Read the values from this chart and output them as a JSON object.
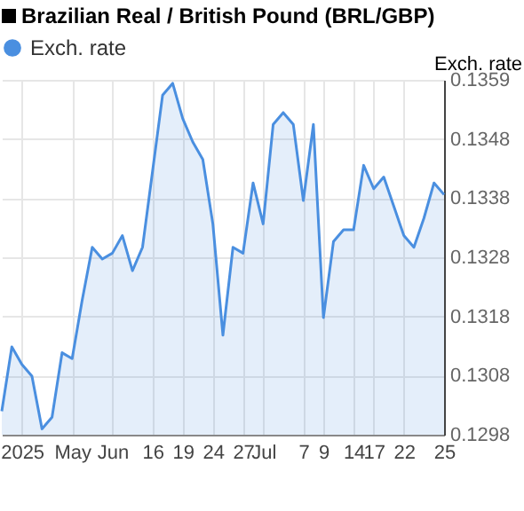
{
  "chart_data": {
    "type": "area",
    "title": "Brazilian Real / British Pound (BRL/GBP)",
    "ylabel": "Exch. rate",
    "categories": [
      null,
      null,
      "2025",
      null,
      null,
      null,
      null,
      "May",
      null,
      null,
      null,
      "Jun",
      null,
      null,
      null,
      "16",
      null,
      null,
      "19",
      null,
      null,
      "24",
      null,
      null,
      "27",
      null,
      "Jul",
      null,
      null,
      null,
      "7",
      null,
      "9",
      null,
      null,
      "14",
      null,
      "17",
      null,
      null,
      "22",
      null,
      null,
      null,
      "25"
    ],
    "series": [
      {
        "name": "Exch. rate",
        "color": "#4a8fe0",
        "values": [
          0.1302,
          0.1313,
          0.131,
          0.1308,
          0.1299,
          0.1301,
          0.1312,
          0.1311,
          0.1321,
          0.133,
          0.1328,
          0.1329,
          0.1332,
          0.1326,
          0.133,
          0.1343,
          0.1356,
          0.1358,
          0.1352,
          0.1348,
          0.1345,
          0.1334,
          0.1315,
          0.133,
          0.1329,
          0.1341,
          0.1334,
          0.1351,
          0.1353,
          0.1351,
          0.1338,
          0.1351,
          0.1318,
          0.1331,
          0.1333,
          0.1333,
          0.1344,
          0.134,
          0.1342,
          0.1337,
          0.1332,
          0.133,
          0.1335,
          0.1341,
          0.1339
        ]
      }
    ],
    "ylim": [
      0.1298,
      0.13586
    ],
    "yticks": [
      0.1298,
      {
        "value": 0.13081,
        "label": "0.1308"
      },
      {
        "value": 0.13182,
        "label": "0.1318"
      },
      {
        "value": 0.13283,
        "label": "0.1328"
      },
      {
        "value": 0.13384,
        "label": "0.1338"
      },
      {
        "value": 0.13485,
        "label": "0.1348"
      },
      {
        "value": 0.13586,
        "label": "0.1359"
      }
    ],
    "grid": true,
    "legend": "top left"
  }
}
